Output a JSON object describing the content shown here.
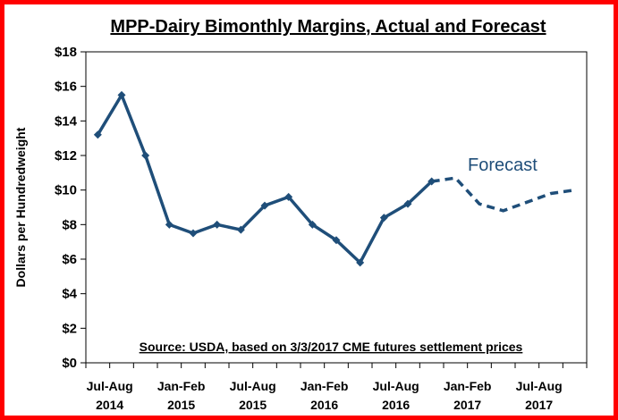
{
  "chart_data": {
    "type": "line",
    "title": "MPP-Dairy Bimonthly Margins, Actual and Forecast",
    "ylabel": "Dollars per Hundredweight",
    "xlabel": "",
    "ylim": [
      0,
      18
    ],
    "yticks": [
      0,
      2,
      4,
      6,
      8,
      10,
      12,
      14,
      16,
      18
    ],
    "ytick_labels": [
      "$0",
      "$2",
      "$4",
      "$6",
      "$8",
      "$10",
      "$12",
      "$14",
      "$16",
      "$18"
    ],
    "x_label_groups": [
      {
        "period": "Jul-Aug",
        "year": "2014",
        "index": 0.5
      },
      {
        "period": "Jan-Feb",
        "year": "2015",
        "index": 3.5
      },
      {
        "period": "Jul-Aug",
        "year": "2015",
        "index": 6.5
      },
      {
        "period": "Jan-Feb",
        "year": "2016",
        "index": 9.5
      },
      {
        "period": "Jul-Aug",
        "year": "2016",
        "index": 12.5
      },
      {
        "period": "Jan-Feb",
        "year": "2017",
        "index": 15.5
      },
      {
        "period": "Jul-Aug",
        "year": "2017",
        "index": 18.5
      }
    ],
    "series": [
      {
        "style": "solid",
        "color": "#1f4e79",
        "x": [
          0,
          1,
          2,
          3,
          4,
          5,
          6,
          7,
          8,
          9,
          10,
          11,
          12,
          13,
          14
        ],
        "values": [
          13.2,
          15.5,
          12.0,
          8.0,
          7.5,
          8.0,
          7.7,
          9.1,
          9.6,
          8.0,
          7.1,
          5.8,
          8.4,
          9.2,
          10.5
        ]
      },
      {
        "style": "dashed",
        "color": "#1f4e79",
        "x": [
          14,
          15,
          16,
          17,
          18,
          19,
          20
        ],
        "values": [
          10.5,
          10.7,
          9.2,
          8.8,
          9.3,
          9.8,
          10.0
        ]
      }
    ],
    "annotations": {
      "forecast": "Forecast",
      "source": "Source:  USDA, based on 3/3/2017 CME futures settlement prices"
    },
    "grid": false,
    "legend": "none"
  },
  "colors": {
    "frame_border": "#ff0000",
    "line": "#1f4e79"
  }
}
